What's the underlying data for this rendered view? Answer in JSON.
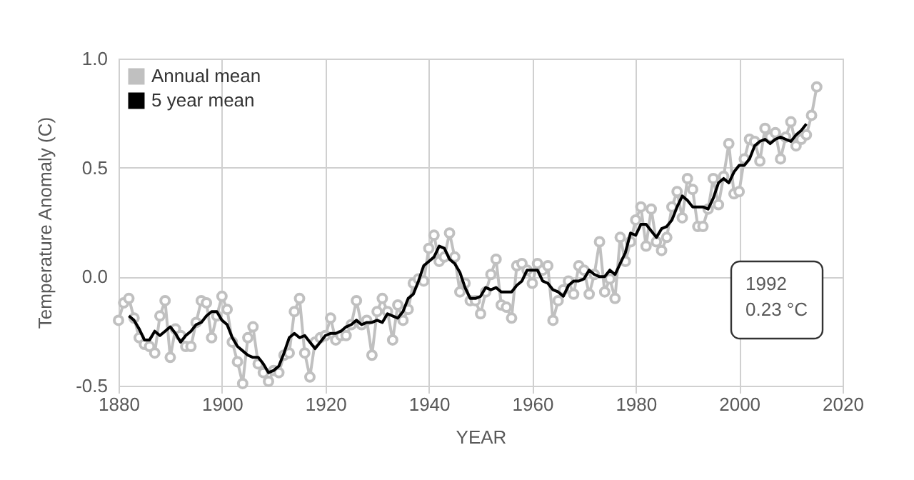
{
  "chart_data": {
    "type": "line",
    "xlabel": "YEAR",
    "ylabel": "Temperature Anomaly (C)",
    "xlim": [
      1880,
      2020
    ],
    "xticks": [
      1880,
      1900,
      1920,
      1940,
      1960,
      1980,
      2000,
      2020
    ],
    "ylim": [
      -0.5,
      1.0
    ],
    "yticks": [
      {
        "value": -0.5,
        "label": "-0.5"
      },
      {
        "value": 0,
        "label": "0.0"
      },
      {
        "value": 0.5,
        "label": "0.5"
      },
      {
        "value": 1.0,
        "label": "1.0"
      }
    ],
    "grid": true,
    "legend": "top left",
    "annotations": [
      "1992\n0.23 °C"
    ],
    "series": [
      {
        "name": "Annual mean",
        "color": "#c0c0c0",
        "marker": "circle",
        "x": [
          1880,
          1881,
          1882,
          1883,
          1884,
          1885,
          1886,
          1887,
          1888,
          1889,
          1890,
          1891,
          1892,
          1893,
          1894,
          1895,
          1896,
          1897,
          1898,
          1899,
          1900,
          1901,
          1902,
          1903,
          1904,
          1905,
          1906,
          1907,
          1908,
          1909,
          1910,
          1911,
          1912,
          1913,
          1914,
          1915,
          1916,
          1917,
          1918,
          1919,
          1920,
          1921,
          1922,
          1923,
          1924,
          1925,
          1926,
          1927,
          1928,
          1929,
          1930,
          1931,
          1932,
          1933,
          1934,
          1935,
          1936,
          1937,
          1938,
          1939,
          1940,
          1941,
          1942,
          1943,
          1944,
          1945,
          1946,
          1947,
          1948,
          1949,
          1950,
          1951,
          1952,
          1953,
          1954,
          1955,
          1956,
          1957,
          1958,
          1959,
          1960,
          1961,
          1962,
          1963,
          1964,
          1965,
          1966,
          1967,
          1968,
          1969,
          1970,
          1971,
          1972,
          1973,
          1974,
          1975,
          1976,
          1977,
          1978,
          1979,
          1980,
          1981,
          1982,
          1983,
          1984,
          1985,
          1986,
          1987,
          1988,
          1989,
          1990,
          1991,
          1992,
          1993,
          1994,
          1995,
          1996,
          1997,
          1998,
          1999,
          2000,
          2001,
          2002,
          2003,
          2004,
          2005,
          2006,
          2007,
          2008,
          2009,
          2010,
          2011,
          2012,
          2013,
          2014,
          2015
        ],
        "values": [
          -0.2,
          -0.12,
          -0.1,
          -0.19,
          -0.28,
          -0.31,
          -0.32,
          -0.35,
          -0.18,
          -0.11,
          -0.37,
          -0.24,
          -0.27,
          -0.32,
          -0.32,
          -0.21,
          -0.11,
          -0.12,
          -0.28,
          -0.18,
          -0.09,
          -0.15,
          -0.3,
          -0.39,
          -0.49,
          -0.28,
          -0.23,
          -0.4,
          -0.44,
          -0.48,
          -0.43,
          -0.44,
          -0.36,
          -0.35,
          -0.16,
          -0.1,
          -0.35,
          -0.46,
          -0.3,
          -0.28,
          -0.27,
          -0.19,
          -0.29,
          -0.27,
          -0.27,
          -0.22,
          -0.11,
          -0.22,
          -0.2,
          -0.36,
          -0.16,
          -0.1,
          -0.16,
          -0.29,
          -0.13,
          -0.2,
          -0.15,
          -0.03,
          -0.01,
          -0.02,
          0.13,
          0.19,
          0.07,
          0.09,
          0.2,
          0.09,
          -0.07,
          -0.03,
          -0.11,
          -0.11,
          -0.17,
          -0.07,
          0.01,
          0.08,
          -0.13,
          -0.14,
          -0.19,
          0.05,
          0.06,
          0.03,
          -0.03,
          0.06,
          0.03,
          0.05,
          -0.2,
          -0.11,
          -0.06,
          -0.02,
          -0.08,
          0.05,
          0.03,
          -0.08,
          0.01,
          0.16,
          -0.07,
          -0.01,
          -0.1,
          0.18,
          0.07,
          0.16,
          0.26,
          0.32,
          0.14,
          0.31,
          0.16,
          0.12,
          0.18,
          0.32,
          0.39,
          0.27,
          0.45,
          0.4,
          0.23,
          0.23,
          0.31,
          0.45,
          0.33,
          0.46,
          0.61,
          0.38,
          0.39,
          0.54,
          0.63,
          0.62,
          0.53,
          0.68,
          0.64,
          0.66,
          0.54,
          0.64,
          0.71,
          0.6,
          0.63,
          0.65,
          0.74,
          0.87
        ]
      },
      {
        "name": "5 year mean",
        "color": "#000000",
        "marker": "none",
        "x": [
          1882,
          1883,
          1884,
          1885,
          1886,
          1887,
          1888,
          1889,
          1890,
          1891,
          1892,
          1893,
          1894,
          1895,
          1896,
          1897,
          1898,
          1899,
          1900,
          1901,
          1902,
          1903,
          1904,
          1905,
          1906,
          1907,
          1908,
          1909,
          1910,
          1911,
          1912,
          1913,
          1914,
          1915,
          1916,
          1917,
          1918,
          1919,
          1920,
          1921,
          1922,
          1923,
          1924,
          1925,
          1926,
          1927,
          1928,
          1929,
          1930,
          1931,
          1932,
          1933,
          1934,
          1935,
          1936,
          1937,
          1938,
          1939,
          1940,
          1941,
          1942,
          1943,
          1944,
          1945,
          1946,
          1947,
          1948,
          1949,
          1950,
          1951,
          1952,
          1953,
          1954,
          1955,
          1956,
          1957,
          1958,
          1959,
          1960,
          1961,
          1962,
          1963,
          1964,
          1965,
          1966,
          1967,
          1968,
          1969,
          1970,
          1971,
          1972,
          1973,
          1974,
          1975,
          1976,
          1977,
          1978,
          1979,
          1980,
          1981,
          1982,
          1983,
          1984,
          1985,
          1986,
          1987,
          1988,
          1989,
          1990,
          1991,
          1992,
          1993,
          1994,
          1995,
          1996,
          1997,
          1998,
          1999,
          2000,
          2001,
          2002,
          2003,
          2004,
          2005,
          2006,
          2007,
          2008,
          2009,
          2010,
          2011,
          2012,
          2013
        ],
        "values": [
          -0.18,
          -0.2,
          -0.24,
          -0.29,
          -0.29,
          -0.25,
          -0.27,
          -0.25,
          -0.23,
          -0.26,
          -0.3,
          -0.27,
          -0.25,
          -0.22,
          -0.21,
          -0.18,
          -0.16,
          -0.16,
          -0.2,
          -0.22,
          -0.28,
          -0.32,
          -0.34,
          -0.36,
          -0.37,
          -0.37,
          -0.4,
          -0.44,
          -0.43,
          -0.41,
          -0.35,
          -0.28,
          -0.26,
          -0.28,
          -0.27,
          -0.3,
          -0.33,
          -0.3,
          -0.27,
          -0.26,
          -0.26,
          -0.25,
          -0.23,
          -0.22,
          -0.2,
          -0.22,
          -0.21,
          -0.21,
          -0.2,
          -0.21,
          -0.17,
          -0.18,
          -0.19,
          -0.16,
          -0.1,
          -0.08,
          -0.02,
          0.05,
          0.07,
          0.09,
          0.14,
          0.13,
          0.08,
          0.06,
          0.02,
          -0.05,
          -0.1,
          -0.1,
          -0.09,
          -0.05,
          -0.06,
          -0.05,
          -0.07,
          -0.07,
          -0.07,
          -0.04,
          -0.02,
          0.03,
          0.03,
          0.03,
          -0.02,
          -0.03,
          -0.06,
          -0.07,
          -0.09,
          -0.04,
          -0.02,
          -0.02,
          -0.01,
          0.03,
          0.01,
          0.0,
          0.0,
          0.03,
          0.01,
          0.06,
          0.11,
          0.2,
          0.19,
          0.24,
          0.24,
          0.21,
          0.18,
          0.22,
          0.23,
          0.26,
          0.32,
          0.37,
          0.35,
          0.32,
          0.32,
          0.32,
          0.31,
          0.36,
          0.43,
          0.45,
          0.43,
          0.48,
          0.51,
          0.51,
          0.54,
          0.6,
          0.62,
          0.63,
          0.61,
          0.63,
          0.64,
          0.63,
          0.62,
          0.65,
          0.67,
          0.7
        ]
      }
    ]
  }
}
